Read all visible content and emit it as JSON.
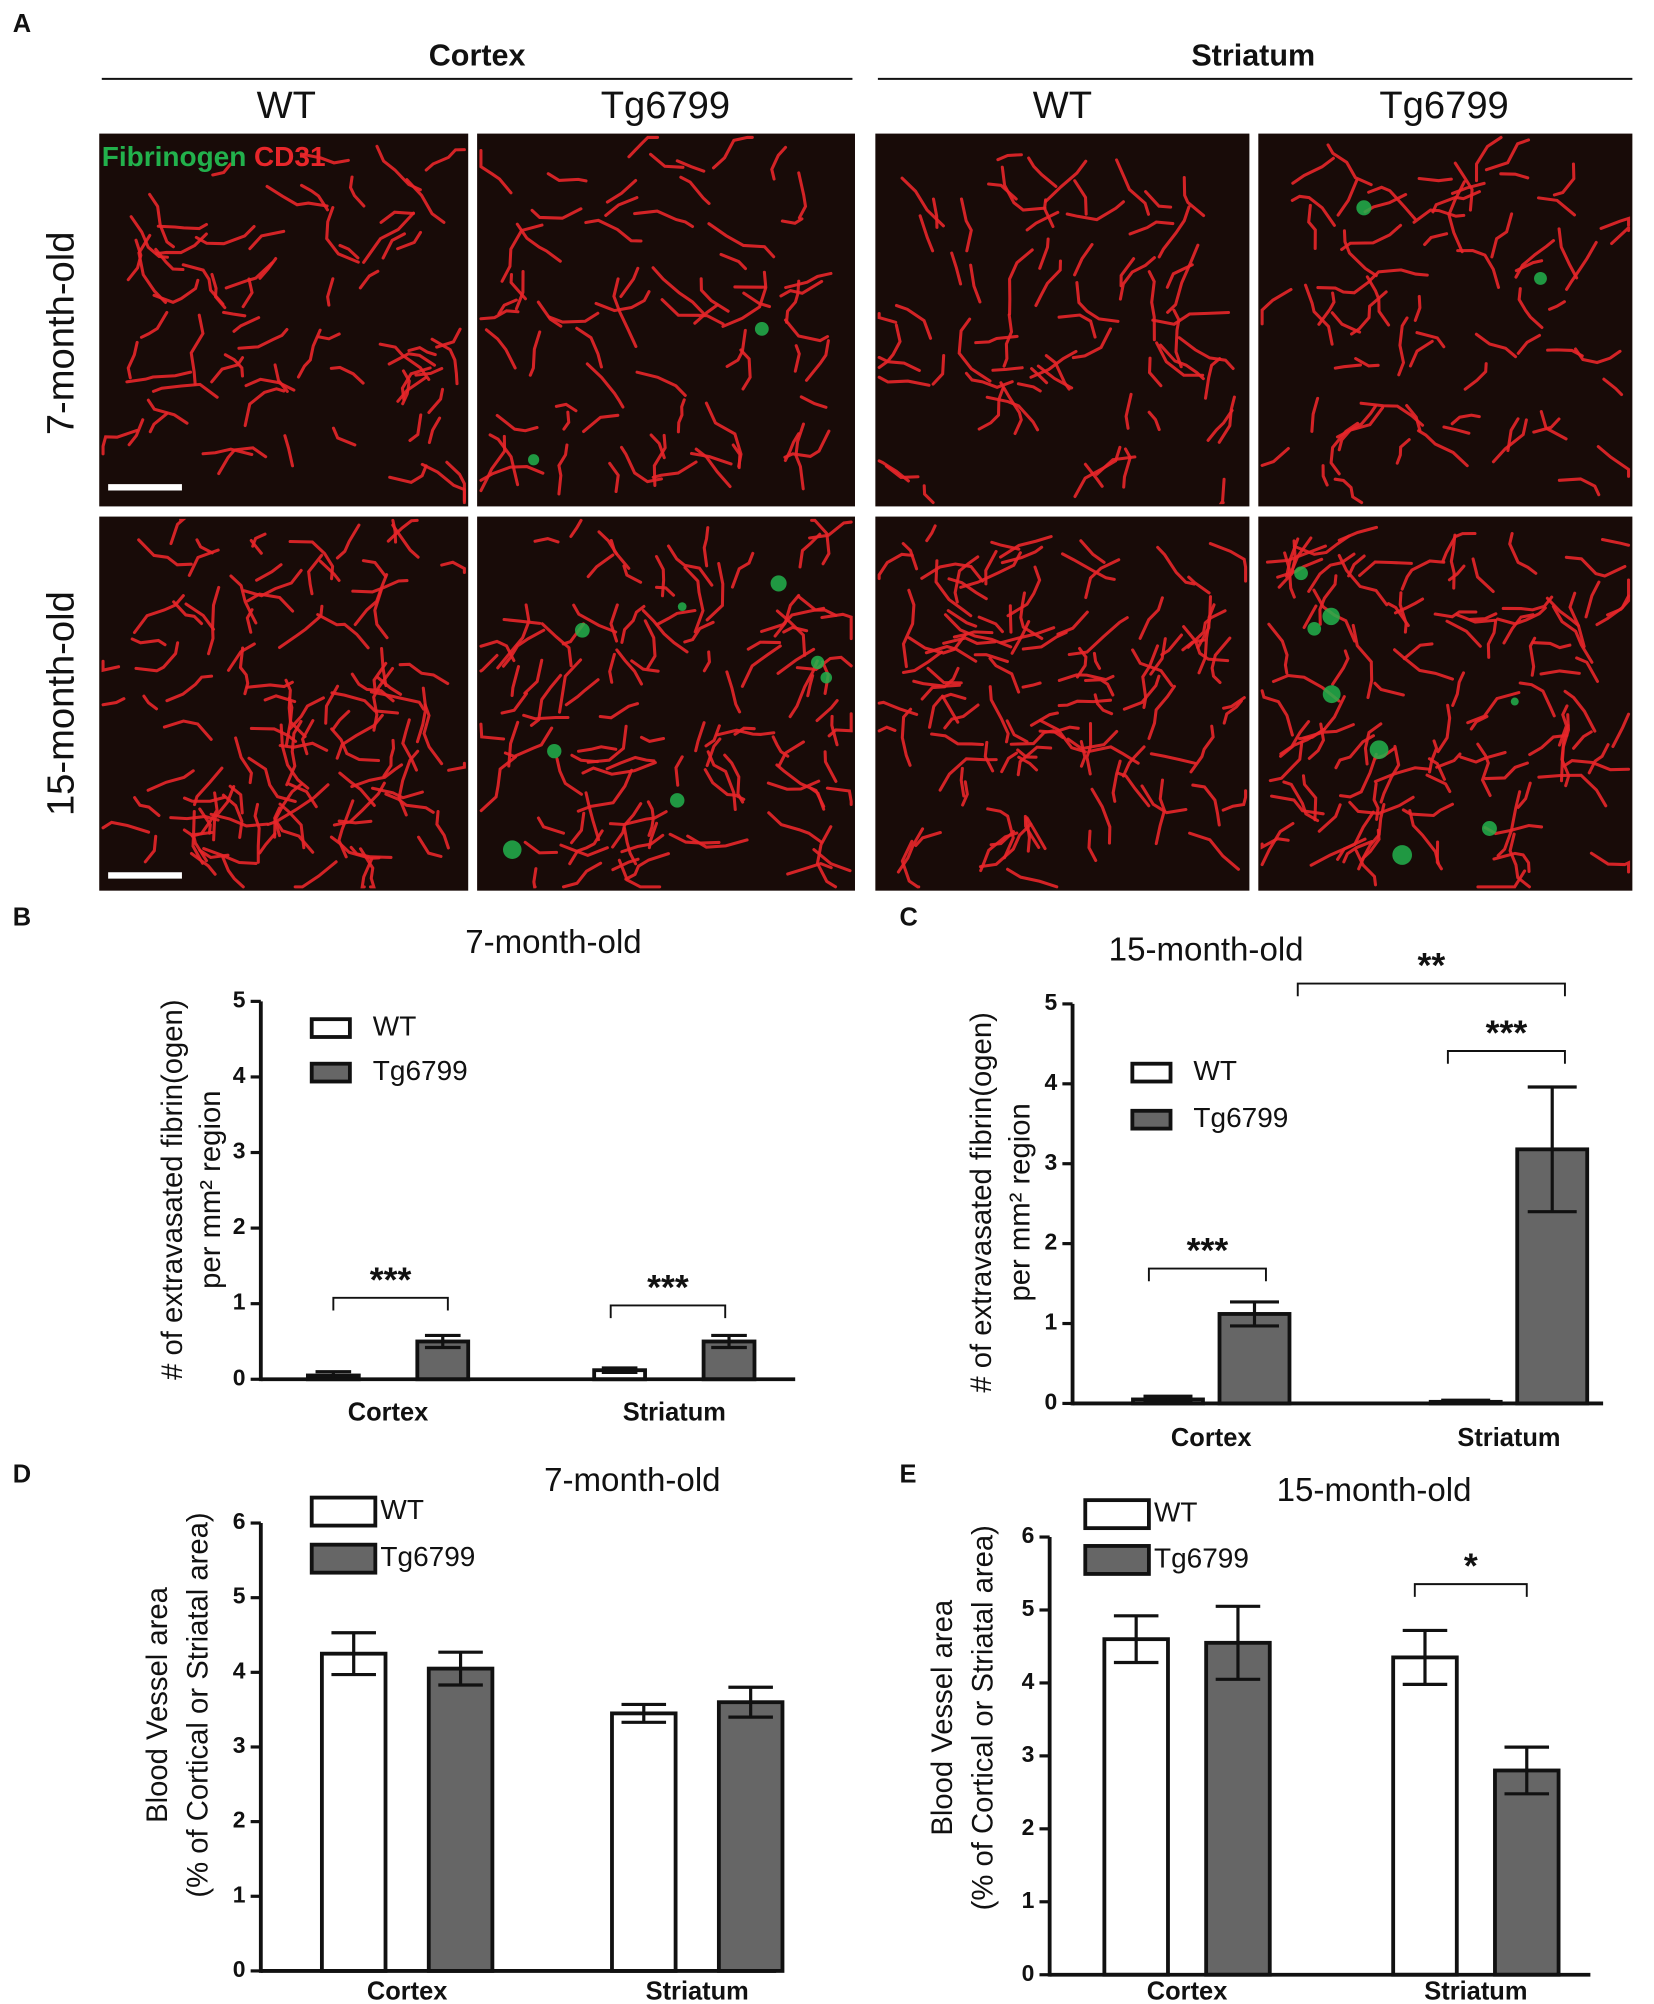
{
  "image_panel": {
    "label": "A",
    "regions": [
      "Cortex",
      "Striatum"
    ],
    "genotypes": [
      "WT",
      "Tg6799",
      "WT",
      "Tg6799"
    ],
    "ages": [
      "7-month-old",
      "15-month-old"
    ],
    "stains": [
      {
        "text": "Fibrinogen",
        "color": "#22b14c"
      },
      {
        "text": "CD31",
        "color": "#e8262a"
      }
    ]
  },
  "chart_data": [
    {
      "type": "bar",
      "panel_label": "B",
      "title": "7-month-old",
      "y_label": [
        "# of extravasated fibrin(ogen)",
        "per mm² region"
      ],
      "categories": [
        "Cortex",
        "Striatum"
      ],
      "series": [
        {
          "name": "WT",
          "color": "#ffffff",
          "values": [
            0.05,
            0.12
          ],
          "errors": [
            0.05,
            0.03
          ]
        },
        {
          "name": "Tg6799",
          "color": "#666666",
          "values": [
            0.5,
            0.5
          ],
          "errors": [
            0.08,
            0.08
          ]
        }
      ],
      "ylim": [
        0,
        5
      ],
      "yticks": [
        0,
        1,
        2,
        3,
        4,
        5
      ],
      "annotations": [
        "***",
        "***"
      ]
    },
    {
      "type": "bar",
      "panel_label": "C",
      "title": "15-month-old",
      "y_label": [
        "# of extravasated fibrin(ogen)",
        "per mm² region"
      ],
      "categories": [
        "Cortex",
        "Striatum"
      ],
      "series": [
        {
          "name": "WT",
          "color": "#ffffff",
          "values": [
            0.05,
            0.02
          ],
          "errors": [
            0.04,
            0.02
          ]
        },
        {
          "name": "Tg6799",
          "color": "#666666",
          "values": [
            1.12,
            3.18
          ],
          "errors": [
            0.15,
            0.78
          ]
        }
      ],
      "ylim": [
        0,
        5
      ],
      "yticks": [
        0,
        1,
        2,
        3,
        4,
        5
      ],
      "annotations": [
        "***",
        "***",
        "**"
      ]
    },
    {
      "type": "bar",
      "panel_label": "D",
      "title": "7-month-old",
      "y_label": [
        "Blood Vessel area",
        "(% of Cortical or Striatal area)"
      ],
      "categories": [
        "Cortex",
        "Striatum"
      ],
      "series": [
        {
          "name": "WT",
          "color": "#ffffff",
          "values": [
            4.25,
            3.45
          ],
          "errors": [
            0.28,
            0.12
          ]
        },
        {
          "name": "Tg6799",
          "color": "#666666",
          "values": [
            4.05,
            3.6
          ],
          "errors": [
            0.22,
            0.2
          ]
        }
      ],
      "ylim": [
        0,
        6
      ],
      "yticks": [
        0,
        1,
        2,
        3,
        4,
        5,
        6
      ],
      "annotations": []
    },
    {
      "type": "bar",
      "panel_label": "E",
      "title": "15-month-old",
      "y_label": [
        "Blood Vessel area",
        "(% of Cortical or Striatal area)"
      ],
      "categories": [
        "Cortex",
        "Striatum"
      ],
      "series": [
        {
          "name": "WT",
          "color": "#ffffff",
          "values": [
            4.6,
            4.35
          ],
          "errors": [
            0.32,
            0.37
          ]
        },
        {
          "name": "Tg6799",
          "color": "#666666",
          "values": [
            4.55,
            2.8
          ],
          "errors": [
            0.5,
            0.32
          ]
        }
      ],
      "ylim": [
        0,
        6
      ],
      "yticks": [
        0,
        1,
        2,
        3,
        4,
        5,
        6
      ],
      "annotations": [
        "*"
      ]
    }
  ]
}
